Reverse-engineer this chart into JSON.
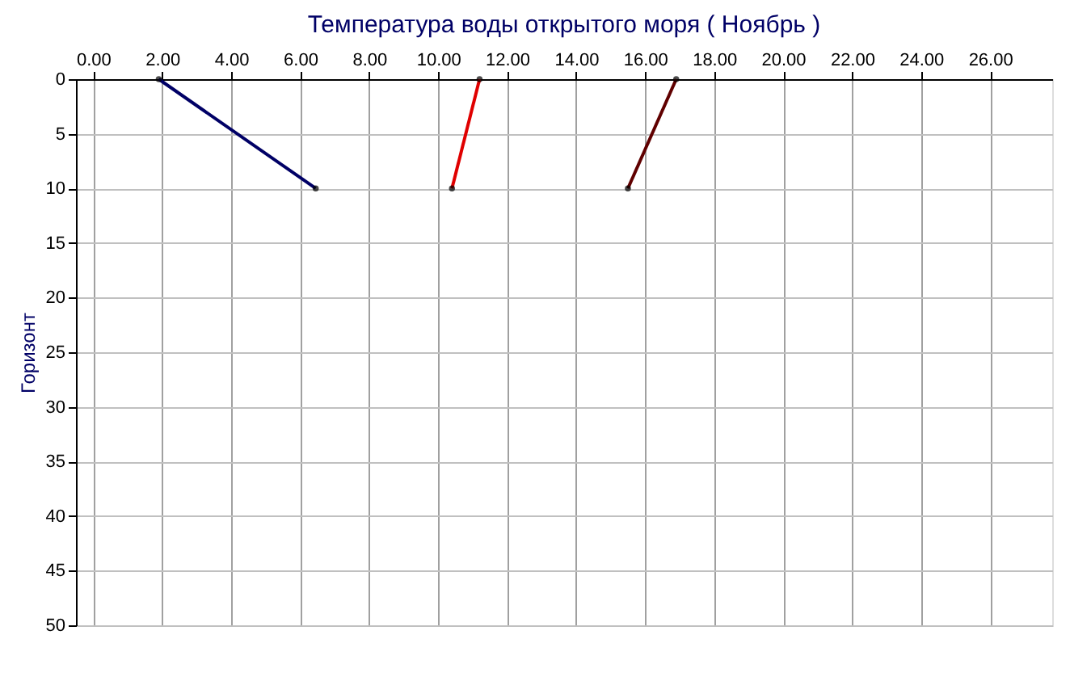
{
  "chart_data": {
    "type": "line",
    "title": "Температура воды открытого моря     ( Ноябрь )",
    "ylabel": "Горизонт",
    "series": [
      {
        "color": "#000066",
        "x": [
          1.9,
          6.45
        ],
        "values": [
          0,
          10
        ]
      },
      {
        "color": "#e00000",
        "x": [
          11.2,
          10.4
        ],
        "values": [
          0,
          10
        ]
      },
      {
        "color": "#600000",
        "x": [
          16.9,
          15.5
        ],
        "values": [
          0,
          10
        ]
      }
    ],
    "xlim": [
      -0.5,
      27.8
    ],
    "xticks": [
      {
        "value": 0,
        "label": "0.00"
      },
      {
        "value": 2,
        "label": "2.00"
      },
      {
        "value": 4,
        "label": "4.00"
      },
      {
        "value": 6,
        "label": "6.00"
      },
      {
        "value": 8,
        "label": "8.00"
      },
      {
        "value": 10,
        "label": "10.00"
      },
      {
        "value": 12,
        "label": "12.00"
      },
      {
        "value": 14,
        "label": "14.00"
      },
      {
        "value": 16,
        "label": "16.00"
      },
      {
        "value": 18,
        "label": "18.00"
      },
      {
        "value": 20,
        "label": "20.00"
      },
      {
        "value": 22,
        "label": "22.00"
      },
      {
        "value": 24,
        "label": "24.00"
      },
      {
        "value": 26,
        "label": "26.00"
      }
    ],
    "ylim": [
      50,
      0
    ],
    "yticks": [
      0,
      5,
      10,
      15,
      20,
      25,
      30,
      35,
      40,
      45,
      50
    ],
    "grid": true,
    "marker": "circle",
    "line_style": "solid",
    "legend": false
  }
}
